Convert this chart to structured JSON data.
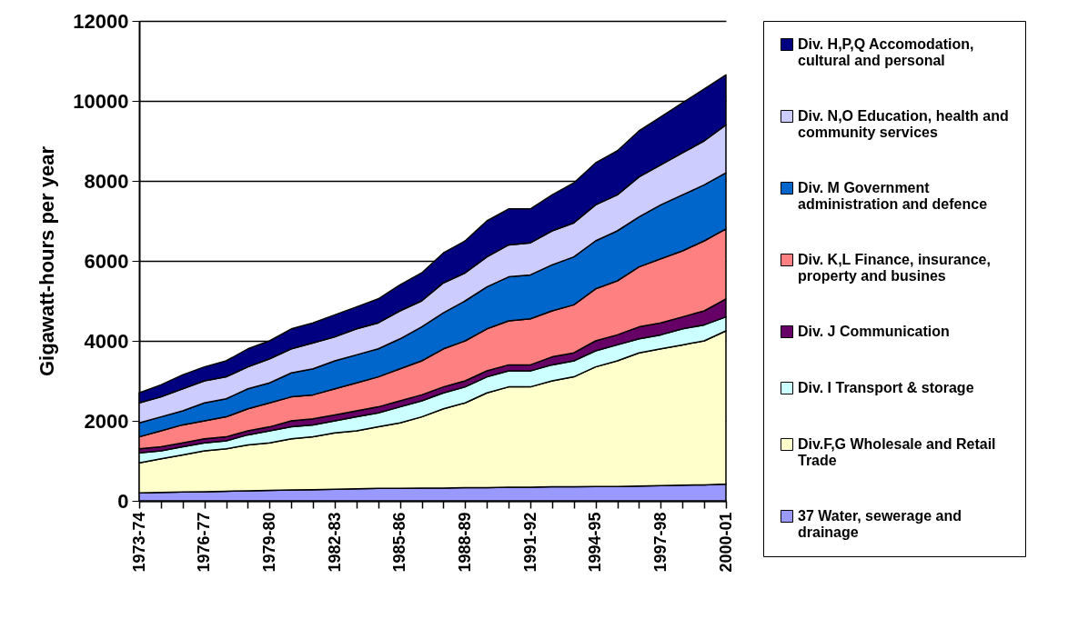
{
  "chart_data": {
    "type": "area",
    "stacked": true,
    "ylabel": "Gigawatt-hours per year",
    "categories": [
      "1973-74",
      null,
      null,
      "1976-77",
      null,
      null,
      "1979-80",
      null,
      null,
      "1982-83",
      null,
      null,
      "1985-86",
      null,
      null,
      "1988-89",
      null,
      null,
      "1991-92",
      null,
      null,
      "1994-95",
      null,
      null,
      "1997-98",
      null,
      null,
      "2000-01"
    ],
    "ylim": [
      0,
      12000
    ],
    "yticks": [
      0,
      2000,
      4000,
      6000,
      8000,
      10000,
      12000
    ],
    "grid": "y",
    "legend": "right",
    "series": [
      {
        "name": "37 Water, sewerage and drainage",
        "color": "#9999ff",
        "values": [
          200,
          210,
          220,
          230,
          240,
          250,
          260,
          270,
          280,
          290,
          300,
          310,
          310,
          320,
          320,
          330,
          330,
          340,
          340,
          350,
          350,
          360,
          360,
          370,
          380,
          390,
          400,
          420
        ]
      },
      {
        "name": "Div.F,G Wholesale and Retail Trade",
        "color": "#ffffcc",
        "values": [
          750,
          840,
          930,
          1020,
          1060,
          1150,
          1190,
          1280,
          1320,
          1410,
          1450,
          1540,
          1640,
          1780,
          1980,
          2120,
          2370,
          2510,
          2510,
          2650,
          2750,
          2990,
          3140,
          3330,
          3420,
          3510,
          3600,
          3830
        ]
      },
      {
        "name": "Div. I Transport & storage",
        "color": "#ccffff",
        "values": [
          250,
          200,
          200,
          200,
          200,
          250,
          300,
          300,
          300,
          300,
          350,
          350,
          400,
          400,
          400,
          400,
          400,
          400,
          400,
          400,
          400,
          400,
          400,
          350,
          350,
          400,
          400,
          350
        ]
      },
      {
        "name": "Div. J Communication",
        "color": "#660066",
        "values": [
          100,
          100,
          100,
          100,
          100,
          100,
          100,
          150,
          150,
          150,
          150,
          150,
          150,
          150,
          150,
          150,
          150,
          150,
          150,
          200,
          200,
          250,
          250,
          300,
          300,
          300,
          350,
          450
        ]
      },
      {
        "name": "Div. K,L Finance, insurance, property and busines",
        "color": "#ff8080",
        "values": [
          300,
          400,
          450,
          450,
          500,
          550,
          600,
          600,
          600,
          650,
          700,
          750,
          800,
          850,
          950,
          1000,
          1050,
          1100,
          1150,
          1150,
          1200,
          1300,
          1350,
          1500,
          1600,
          1650,
          1750,
          1750
        ]
      },
      {
        "name": "Div. M Government administration and defence",
        "color": "#0066cc",
        "values": [
          350,
          350,
          350,
          450,
          450,
          500,
          500,
          600,
          650,
          700,
          700,
          700,
          750,
          850,
          900,
          1000,
          1050,
          1100,
          1100,
          1150,
          1200,
          1200,
          1250,
          1250,
          1350,
          1400,
          1400,
          1400
        ]
      },
      {
        "name": "Div. N,O Education, health and community services",
        "color": "#ccccff",
        "values": [
          500,
          500,
          550,
          550,
          550,
          550,
          600,
          600,
          650,
          600,
          650,
          650,
          700,
          650,
          750,
          700,
          750,
          800,
          800,
          850,
          850,
          900,
          900,
          1000,
          1000,
          1050,
          1100,
          1200
        ]
      },
      {
        "name": "Div. H,P,Q Accomodation, cultural and personal",
        "color": "#000080",
        "values": [
          250,
          300,
          350,
          350,
          400,
          450,
          450,
          500,
          500,
          550,
          550,
          600,
          650,
          700,
          750,
          800,
          900,
          900,
          850,
          900,
          1000,
          1050,
          1100,
          1150,
          1200,
          1250,
          1300,
          1250
        ]
      }
    ]
  }
}
